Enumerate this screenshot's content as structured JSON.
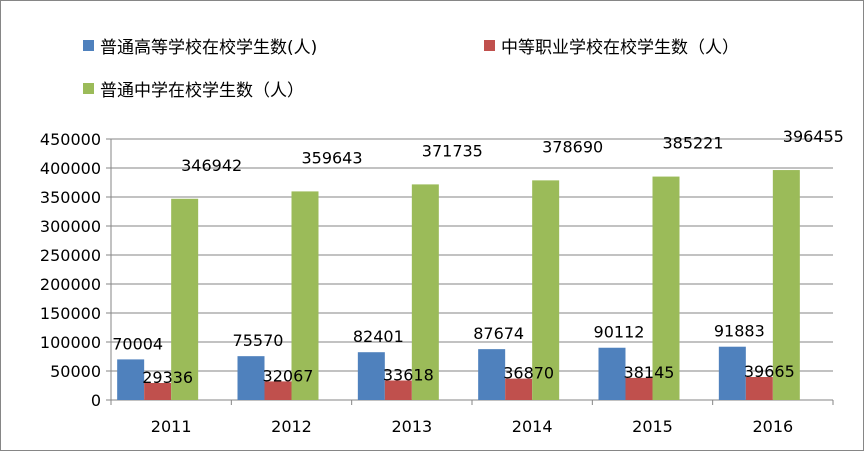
{
  "colors": {
    "series_1": "#4f81bd",
    "series_2": "#c0504d",
    "series_3": "#9bbb59",
    "axis": "#868686",
    "grid": "#868686"
  },
  "chart_data": {
    "type": "bar",
    "categories": [
      "2011",
      "2012",
      "2013",
      "2014",
      "2015",
      "2016"
    ],
    "series": [
      {
        "name": "普通高等学校在校学生数(人)",
        "values": [
          70004,
          75570,
          82401,
          87674,
          90112,
          91883
        ]
      },
      {
        "name": "中等职业学校在校学生数（人）",
        "values": [
          29336,
          32067,
          33618,
          36870,
          38145,
          39665
        ]
      },
      {
        "name": "普通中学在校学生数（人）",
        "values": [
          346942,
          359643,
          371735,
          378690,
          385221,
          396455
        ]
      }
    ],
    "y_ticks": [
      "0",
      "50000",
      "100000",
      "150000",
      "200000",
      "250000",
      "300000",
      "350000",
      "400000",
      "450000"
    ],
    "ylim": [
      0,
      450000
    ],
    "grid": "horizontal",
    "legend": "top"
  }
}
